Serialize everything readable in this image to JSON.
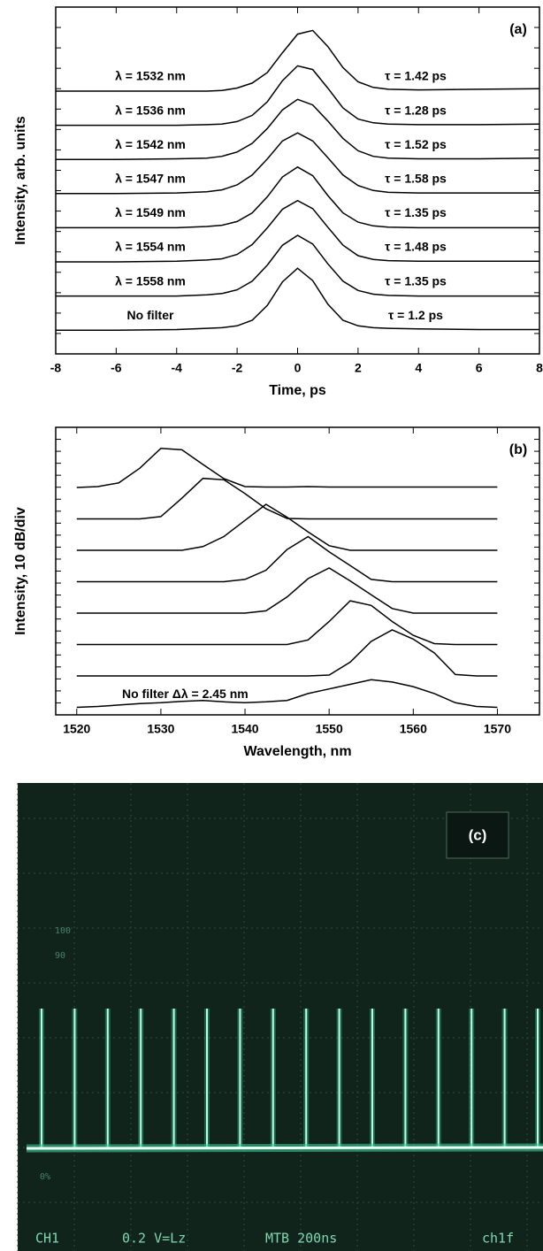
{
  "chart_data": [
    {
      "type": "line",
      "panel_label": "(a)",
      "xlabel": "Time, ps",
      "ylabel": "Intensity, arb. units",
      "xlim": [
        -8,
        8
      ],
      "xticks": [
        -8,
        -6,
        -4,
        -2,
        0,
        2,
        4,
        6,
        8
      ],
      "x": [
        -8,
        -6,
        -4,
        -3,
        -2.5,
        -2,
        -1.5,
        -1,
        -0.5,
        0,
        0.5,
        1,
        1.5,
        2,
        2.5,
        3,
        4,
        6,
        8
      ],
      "series": [
        {
          "name": "λ = 1532 nm",
          "tau_label": "τ = 1.42 ps",
          "color": "#000000",
          "values": [
            0,
            0,
            0,
            0,
            0.01,
            0.05,
            0.13,
            0.3,
            0.62,
            0.92,
            0.98,
            0.72,
            0.38,
            0.15,
            0.06,
            0.03,
            0.02,
            0.03,
            0.04
          ]
        },
        {
          "name": "λ = 1536 nm",
          "tau_label": "τ = 1.28 ps",
          "color": "#000000",
          "values": [
            0,
            0,
            0,
            0.01,
            0.02,
            0.06,
            0.16,
            0.38,
            0.72,
            0.96,
            0.9,
            0.6,
            0.28,
            0.1,
            0.04,
            0.02,
            0.01,
            0.01,
            0.02
          ]
        },
        {
          "name": "λ = 1542 nm",
          "tau_label": "τ = 1.52 ps",
          "color": "#000000",
          "values": [
            0,
            0,
            0.01,
            0.02,
            0.05,
            0.12,
            0.26,
            0.5,
            0.8,
            0.97,
            0.88,
            0.62,
            0.34,
            0.14,
            0.05,
            0.02,
            0.01,
            0.01,
            0.02
          ]
        },
        {
          "name": "λ = 1547 nm",
          "tau_label": "τ = 1.58 ps",
          "color": "#000000",
          "values": [
            0,
            0,
            0.01,
            0.03,
            0.06,
            0.14,
            0.3,
            0.56,
            0.85,
            0.98,
            0.85,
            0.58,
            0.3,
            0.13,
            0.05,
            0.02,
            0.01,
            0.01,
            0.01
          ]
        },
        {
          "name": "λ = 1549 nm",
          "tau_label": "τ = 1.35 ps",
          "color": "#000000",
          "values": [
            0,
            0,
            0,
            0.02,
            0.04,
            0.1,
            0.24,
            0.5,
            0.82,
            0.98,
            0.84,
            0.52,
            0.24,
            0.09,
            0.03,
            0.01,
            0,
            0,
            0
          ]
        },
        {
          "name": "λ = 1554 nm",
          "tau_label": "τ = 1.48 ps",
          "color": "#000000",
          "values": [
            0,
            0,
            0.01,
            0.03,
            0.05,
            0.12,
            0.28,
            0.55,
            0.85,
            0.99,
            0.86,
            0.56,
            0.27,
            0.1,
            0.04,
            0.02,
            0.01,
            0.01,
            0.01
          ]
        },
        {
          "name": "λ = 1558 nm",
          "tau_label": "τ = 1.35 ps",
          "color": "#000000",
          "values": [
            0,
            0,
            0,
            0.02,
            0.04,
            0.1,
            0.24,
            0.5,
            0.82,
            0.98,
            0.84,
            0.52,
            0.24,
            0.09,
            0.03,
            0.01,
            0,
            0,
            0
          ]
        },
        {
          "name": "No filter",
          "tau_label": "τ = 1.2 ps",
          "color": "#000000",
          "values": [
            0,
            0,
            0.01,
            0.03,
            0.04,
            0.07,
            0.16,
            0.4,
            0.78,
            1.0,
            0.8,
            0.42,
            0.16,
            0.07,
            0.04,
            0.03,
            0.02,
            0.01,
            0.01
          ]
        }
      ]
    },
    {
      "type": "line",
      "panel_label": "(b)",
      "xlabel": "Wavelength, nm",
      "ylabel": "Intensity, 10 dB/div",
      "annotation": "No filter Δλ = 2.45 nm",
      "xlim": [
        1517.5,
        1575
      ],
      "xticks": [
        1520,
        1530,
        1540,
        1550,
        1560,
        1570
      ],
      "x": [
        1520,
        1522.5,
        1525,
        1527.5,
        1530,
        1532.5,
        1535,
        1537.5,
        1540,
        1542.5,
        1545,
        1547.5,
        1550,
        1552.5,
        1555,
        1557.5,
        1560,
        1562.5,
        1565,
        1567.5,
        1570
      ],
      "series": [
        {
          "color": "#000000",
          "values": [
            0,
            0.02,
            0.1,
            0.42,
            0.85,
            0.82,
            0.5,
            0.19,
            0.02,
            0.01,
            0.01,
            0.02,
            0.01,
            0.01,
            0.01,
            0.01,
            0.01,
            0.01,
            0.01,
            0.01,
            0.01
          ]
        },
        {
          "color": "#000000",
          "values": [
            0,
            0,
            0,
            0,
            0.05,
            0.45,
            0.88,
            0.85,
            0.55,
            0.22,
            0.01,
            0,
            0,
            0,
            0,
            0,
            0,
            0,
            0,
            0,
            0
          ]
        },
        {
          "color": "#000000",
          "values": [
            0,
            0,
            0,
            0,
            0,
            0,
            0.08,
            0.3,
            0.65,
            1.0,
            0.72,
            0.4,
            0.1,
            0,
            0,
            0,
            0,
            0,
            0,
            0,
            0
          ]
        },
        {
          "color": "#000000",
          "values": [
            0,
            0,
            0,
            0,
            0,
            0,
            0,
            0,
            0.05,
            0.25,
            0.7,
            0.98,
            0.65,
            0.35,
            0.05,
            0,
            0,
            0,
            0,
            0,
            0
          ]
        },
        {
          "color": "#000000",
          "values": [
            0,
            0,
            0,
            0,
            0,
            0,
            0,
            0,
            0,
            0.05,
            0.35,
            0.75,
            0.98,
            0.7,
            0.4,
            0.1,
            0,
            0,
            0,
            0,
            0
          ]
        },
        {
          "color": "#000000",
          "values": [
            0,
            0,
            0,
            0,
            0,
            0,
            0,
            0,
            0,
            0,
            0,
            0.1,
            0.5,
            0.95,
            0.85,
            0.5,
            0.2,
            0.02,
            0,
            0,
            0
          ]
        },
        {
          "color": "#000000",
          "values": [
            0,
            0,
            0,
            0,
            0,
            0,
            0,
            0,
            0,
            0,
            0,
            0,
            0.02,
            0.3,
            0.75,
            1.0,
            0.8,
            0.5,
            0.03,
            0,
            0
          ]
        },
        {
          "color": "#000000",
          "values": [
            0,
            0.02,
            0.05,
            0.08,
            0.1,
            0.13,
            0.15,
            0.12,
            0.1,
            0.12,
            0.15,
            0.3,
            0.4,
            0.5,
            0.6,
            0.55,
            0.45,
            0.3,
            0.1,
            0.02,
            0
          ]
        }
      ]
    }
  ],
  "photo": {
    "label": "(c)",
    "scale_marks": [
      "100",
      "90",
      "0%"
    ],
    "screen_text": [
      "CH1",
      "0.2 V=Lz",
      "MTB 200ns",
      "ch1f"
    ]
  }
}
